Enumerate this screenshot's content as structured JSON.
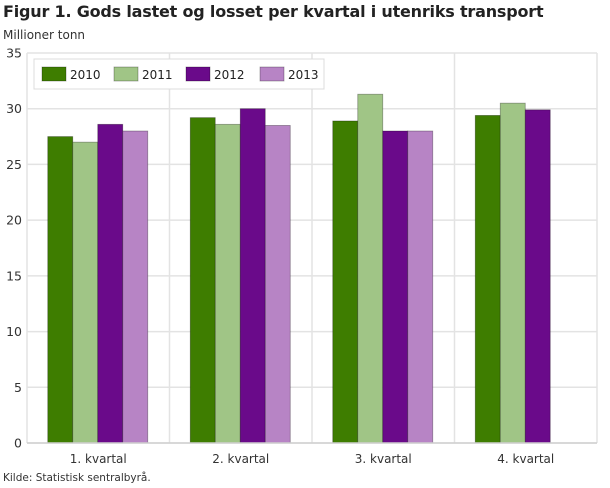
{
  "chart_data": {
    "type": "bar",
    "title": "Figur 1. Gods lastet og losset per kvartal i utenriks transport",
    "ylabel": "Millioner tonn",
    "xlabel": "",
    "source": "Kilde: Statistisk sentralbyrå.",
    "categories": [
      "1. kvartal",
      "2. kvartal",
      "3. kvartal",
      "4. kvartal"
    ],
    "ylim": [
      0,
      35
    ],
    "yticks": [
      0,
      5,
      10,
      15,
      20,
      25,
      30,
      35
    ],
    "grid": true,
    "legend_position": "top-left",
    "series": [
      {
        "name": "2010",
        "color": "#3e7d00",
        "values": [
          27.5,
          29.2,
          28.9,
          29.4
        ]
      },
      {
        "name": "2011",
        "color": "#a0c586",
        "values": [
          27.0,
          28.6,
          31.3,
          30.5
        ]
      },
      {
        "name": "2012",
        "color": "#6a0a8a",
        "values": [
          28.6,
          30.0,
          28.0,
          29.9
        ]
      },
      {
        "name": "2013",
        "color": "#b784c5",
        "values": [
          28.0,
          28.5,
          28.0,
          null
        ]
      }
    ]
  }
}
